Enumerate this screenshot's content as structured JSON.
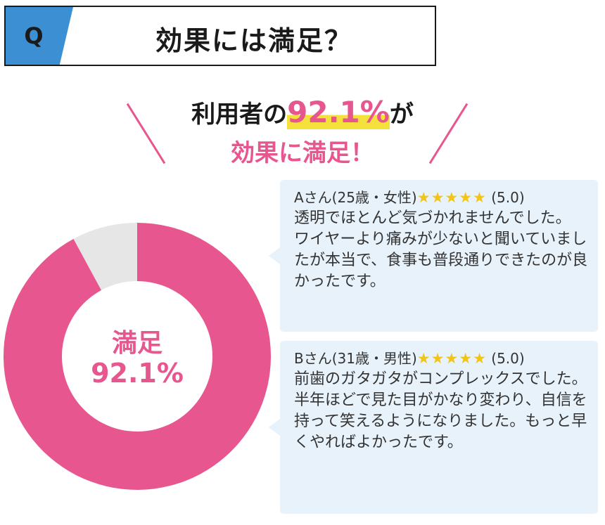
{
  "question": {
    "badge": "Q",
    "title": "効果には満足？"
  },
  "headline": {
    "line1_prefix": "利用者の",
    "line1_highlight": "92.1%",
    "line1_suffix": "が",
    "line2": "効果に満足！"
  },
  "chart_data": {
    "type": "pie",
    "donut": true,
    "categories": [
      "満足",
      ""
    ],
    "values": [
      92.1,
      7.9
    ],
    "colors": [
      "#e8568f",
      "#e6e6e6"
    ],
    "center_label": "満足",
    "center_value": "92.1%"
  },
  "reviews": [
    {
      "reviewer": "Aさん(25歳・女性)",
      "stars": "★★★★★",
      "rating": "(5.0)",
      "text": "透明でほとんど気づかれませんでした。\nワイヤーより痛みが少ないと聞いていましたが本当で、食事も普段通りできたのが良かったです。"
    },
    {
      "reviewer": "Bさん(31歳・男性)",
      "stars": "★★★★★",
      "rating": "(5.0)",
      "text": "前歯のガタガタがコンプレックスでした。\n半年ほどで見た目がかなり変わり、自信を持って笑えるようになりました。もっと早くやればよかったです。"
    }
  ]
}
